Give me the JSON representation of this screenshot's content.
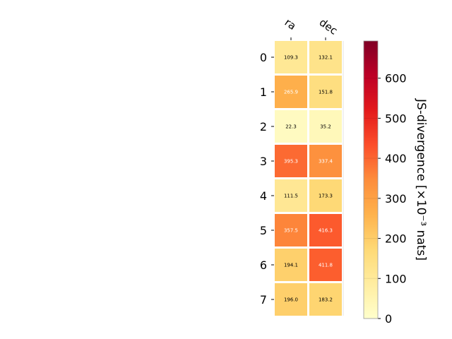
{
  "chart_data": {
    "type": "heatmap",
    "columns": [
      "ra",
      "dec"
    ],
    "rows": [
      "0",
      "1",
      "2",
      "3",
      "4",
      "5",
      "6",
      "7"
    ],
    "values": [
      [
        109.3,
        132.1
      ],
      [
        265.9,
        151.8
      ],
      [
        22.3,
        35.2
      ],
      [
        395.3,
        337.4
      ],
      [
        111.5,
        173.3
      ],
      [
        357.5,
        416.3
      ],
      [
        194.1,
        411.8
      ],
      [
        196.0,
        183.2
      ]
    ],
    "cell_labels": [
      [
        "109.3",
        "132.1"
      ],
      [
        "265.9",
        "151.8"
      ],
      [
        "22.3",
        "35.2"
      ],
      [
        "395.3",
        "337.4"
      ],
      [
        "111.5",
        "173.3"
      ],
      [
        "357.5",
        "416.3"
      ],
      [
        "194.1",
        "411.8"
      ],
      [
        "196.0",
        "183.2"
      ]
    ],
    "colorbar": {
      "label": "JS-divergence [×10⁻³ nats]",
      "range": [
        0,
        693
      ],
      "ticks": [
        0,
        100,
        200,
        300,
        400,
        500,
        600
      ],
      "tick_labels": [
        "0",
        "100",
        "200",
        "300",
        "400",
        "500",
        "600"
      ],
      "colormap": "YlOrRd",
      "colors": [
        "#ffffcc",
        "#ffeda0",
        "#fed976",
        "#feb24c",
        "#fd8d3c",
        "#fc4e2a",
        "#e31a1c",
        "#bd0026",
        "#800026"
      ]
    },
    "light_text_threshold": 250,
    "grid": false
  }
}
